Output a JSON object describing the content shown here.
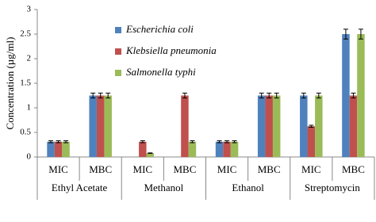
{
  "chart_data": {
    "type": "bar",
    "y_label": "Concentration (µg/ml)",
    "categories": [
      "MIC",
      "MBC",
      "MIC",
      "MBC",
      "MIC",
      "MBC",
      "MIC",
      "MBC"
    ],
    "groups": [
      "Ethyl Acetate",
      "Methanol",
      "Ethanol",
      "Streptomycin"
    ],
    "series": [
      {
        "name": "Escherichia coli",
        "color": "#4f81bd",
        "values": [
          0.31,
          1.25,
          null,
          null,
          0.31,
          1.25,
          1.25,
          2.5
        ],
        "errors": [
          0.02,
          0.05,
          null,
          null,
          0.02,
          0.05,
          0.05,
          0.1
        ]
      },
      {
        "name": "Klebsiella pneumonia",
        "color": "#c0504d",
        "values": [
          0.31,
          1.25,
          0.31,
          1.25,
          0.31,
          1.25,
          0.625,
          1.25
        ],
        "errors": [
          0.02,
          0.05,
          0.02,
          0.05,
          0.02,
          0.05,
          0.02,
          0.05
        ]
      },
      {
        "name": "Salmonella typhi",
        "color": "#9bbb59",
        "values": [
          0.31,
          1.25,
          0.078,
          0.31,
          0.31,
          1.25,
          1.25,
          2.5
        ],
        "errors": [
          0.02,
          0.05,
          0.005,
          0.02,
          0.02,
          0.05,
          0.05,
          0.1
        ]
      }
    ],
    "ylim": [
      0,
      3
    ],
    "yticks": [
      0,
      0.5,
      1,
      1.5,
      2,
      2.5,
      3
    ],
    "grid": false,
    "legend": "top"
  }
}
